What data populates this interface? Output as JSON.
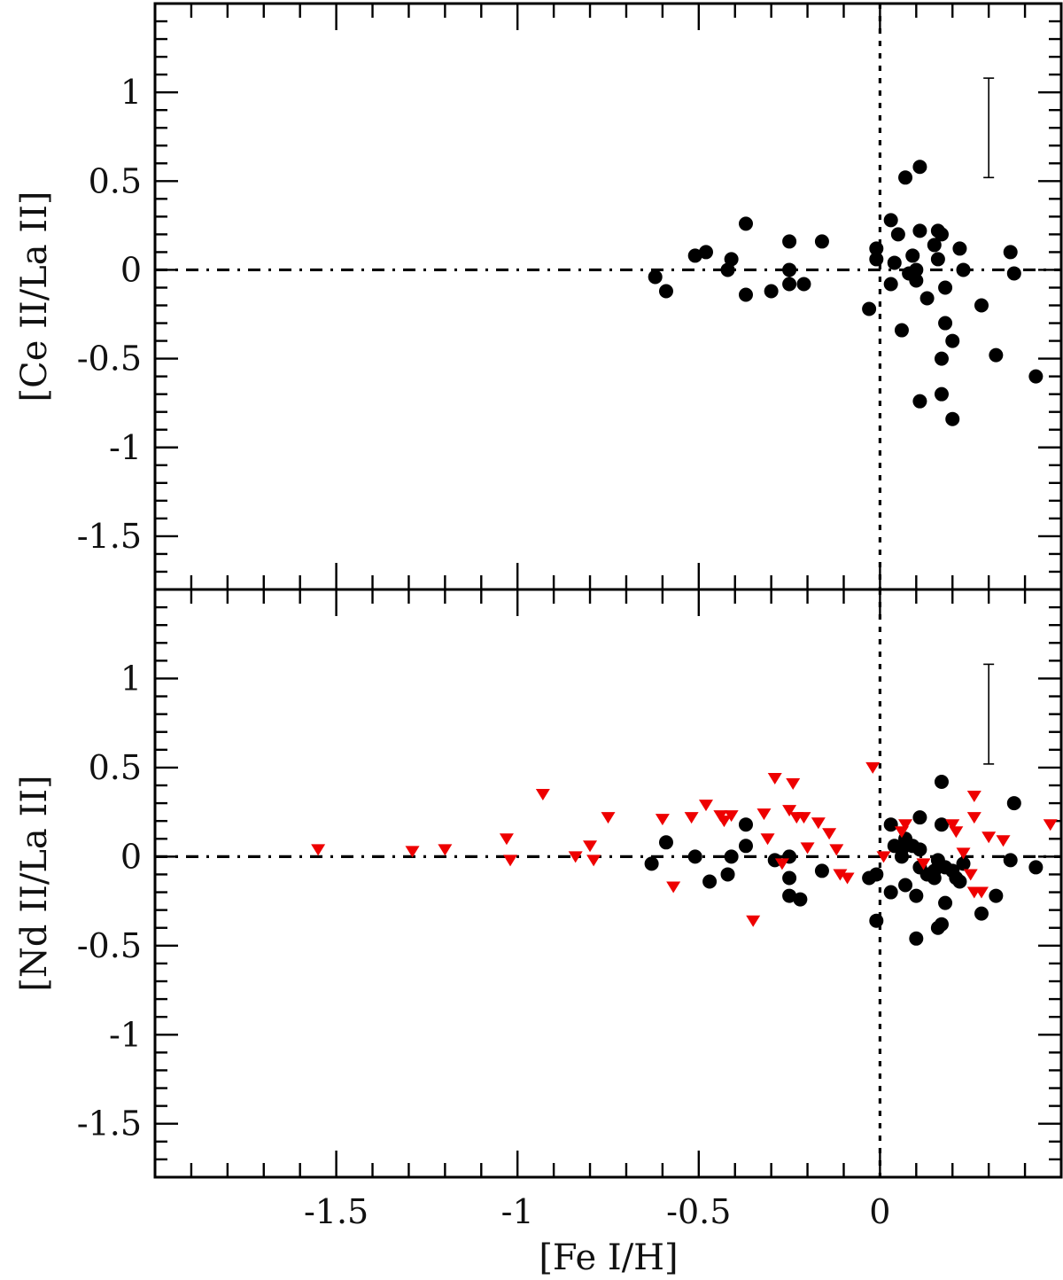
{
  "figure": {
    "xlabel": "[Fe I/H]",
    "x_tick_labels": [
      "-1.5",
      "-1",
      "-0.5",
      "0"
    ],
    "colors": {
      "ink": "#000000",
      "circle": "#000000",
      "triangle": "#ee0000"
    }
  },
  "chart_data": [
    {
      "type": "scatter",
      "ylabel": "[Ce II/La II]",
      "xlim": [
        -2.0,
        0.5
      ],
      "ylim": [
        -1.8,
        1.5
      ],
      "y_tick_labels": [
        "1",
        "0.5",
        "0",
        "-0.5",
        "-1",
        "-1.5"
      ],
      "reference_lines": {
        "horizontal_y": 0,
        "vertical_x": 0
      },
      "error_bar": {
        "x": 0.3,
        "y_low": 0.52,
        "y_high": 1.08
      },
      "grid": false,
      "series": [
        {
          "marker": "circle",
          "color": "#000000",
          "points": [
            [
              -0.62,
              -0.04
            ],
            [
              -0.59,
              -0.12
            ],
            [
              -0.51,
              0.08
            ],
            [
              -0.48,
              0.1
            ],
            [
              -0.42,
              0.0
            ],
            [
              -0.41,
              0.06
            ],
            [
              -0.37,
              0.26
            ],
            [
              -0.37,
              -0.14
            ],
            [
              -0.3,
              -0.12
            ],
            [
              -0.25,
              0.16
            ],
            [
              -0.25,
              0.0
            ],
            [
              -0.25,
              -0.08
            ],
            [
              -0.21,
              -0.08
            ],
            [
              -0.16,
              0.16
            ],
            [
              -0.03,
              -0.22
            ],
            [
              -0.01,
              0.12
            ],
            [
              -0.01,
              0.06
            ],
            [
              0.03,
              0.28
            ],
            [
              0.04,
              0.04
            ],
            [
              0.05,
              0.2
            ],
            [
              0.03,
              -0.08
            ],
            [
              0.06,
              -0.34
            ],
            [
              0.07,
              0.52
            ],
            [
              0.08,
              -0.02
            ],
            [
              0.09,
              0.08
            ],
            [
              0.1,
              0.0
            ],
            [
              0.1,
              -0.06
            ],
            [
              0.11,
              0.58
            ],
            [
              0.11,
              0.22
            ],
            [
              0.11,
              -0.74
            ],
            [
              0.13,
              -0.16
            ],
            [
              0.15,
              0.14
            ],
            [
              0.16,
              0.22
            ],
            [
              0.16,
              0.06
            ],
            [
              0.17,
              0.2
            ],
            [
              0.17,
              -0.5
            ],
            [
              0.17,
              -0.7
            ],
            [
              0.18,
              -0.1
            ],
            [
              0.18,
              -0.3
            ],
            [
              0.2,
              -0.4
            ],
            [
              0.2,
              -0.84
            ],
            [
              0.22,
              0.12
            ],
            [
              0.23,
              0.0
            ],
            [
              0.28,
              -0.2
            ],
            [
              0.32,
              -0.48
            ],
            [
              0.36,
              0.1
            ],
            [
              0.37,
              -0.02
            ],
            [
              0.43,
              -0.6
            ]
          ]
        }
      ]
    },
    {
      "type": "scatter",
      "ylabel": "[Nd II/La II]",
      "xlim": [
        -2.0,
        0.5
      ],
      "ylim": [
        -1.8,
        1.5
      ],
      "y_tick_labels": [
        "1",
        "0.5",
        "0",
        "-0.5",
        "-1",
        "-1.5"
      ],
      "reference_lines": {
        "horizontal_y": 0,
        "vertical_x": 0
      },
      "error_bar": {
        "x": 0.3,
        "y_low": 0.52,
        "y_high": 1.08
      },
      "grid": false,
      "series": [
        {
          "marker": "circle",
          "color": "#000000",
          "points": [
            [
              -0.63,
              -0.04
            ],
            [
              -0.59,
              0.08
            ],
            [
              -0.51,
              0.0
            ],
            [
              -0.47,
              -0.14
            ],
            [
              -0.42,
              -0.1
            ],
            [
              -0.41,
              0.0
            ],
            [
              -0.37,
              0.18
            ],
            [
              -0.37,
              0.06
            ],
            [
              -0.29,
              -0.02
            ],
            [
              -0.25,
              0.0
            ],
            [
              -0.25,
              -0.12
            ],
            [
              -0.25,
              -0.22
            ],
            [
              -0.22,
              -0.24
            ],
            [
              -0.16,
              -0.08
            ],
            [
              -0.03,
              -0.12
            ],
            [
              -0.01,
              -0.1
            ],
            [
              -0.01,
              -0.36
            ],
            [
              0.03,
              0.18
            ],
            [
              0.03,
              -0.2
            ],
            [
              0.04,
              0.06
            ],
            [
              0.06,
              0.0
            ],
            [
              0.06,
              0.04
            ],
            [
              0.07,
              0.1
            ],
            [
              0.07,
              -0.16
            ],
            [
              0.09,
              0.06
            ],
            [
              0.1,
              -0.22
            ],
            [
              0.1,
              -0.46
            ],
            [
              0.11,
              0.22
            ],
            [
              0.11,
              0.04
            ],
            [
              0.11,
              -0.06
            ],
            [
              0.13,
              -0.1
            ],
            [
              0.15,
              -0.08
            ],
            [
              0.15,
              -0.12
            ],
            [
              0.16,
              -0.02
            ],
            [
              0.16,
              -0.4
            ],
            [
              0.17,
              0.18
            ],
            [
              0.17,
              -0.38
            ],
            [
              0.17,
              0.42
            ],
            [
              0.18,
              -0.06
            ],
            [
              0.18,
              -0.26
            ],
            [
              0.2,
              -0.08
            ],
            [
              0.21,
              -0.12
            ],
            [
              0.22,
              -0.14
            ],
            [
              0.23,
              -0.04
            ],
            [
              0.28,
              -0.32
            ],
            [
              0.32,
              -0.22
            ],
            [
              0.36,
              -0.02
            ],
            [
              0.37,
              0.3
            ],
            [
              0.43,
              -0.06
            ]
          ]
        },
        {
          "marker": "triangle-down",
          "color": "#ee0000",
          "points": [
            [
              -1.55,
              0.04
            ],
            [
              -1.29,
              0.03
            ],
            [
              -1.2,
              0.04
            ],
            [
              -1.03,
              0.1
            ],
            [
              -1.02,
              -0.02
            ],
            [
              -0.93,
              0.35
            ],
            [
              -0.84,
              0.0
            ],
            [
              -0.8,
              0.06
            ],
            [
              -0.79,
              -0.02
            ],
            [
              -0.75,
              0.22
            ],
            [
              -0.6,
              0.21
            ],
            [
              -0.57,
              -0.17
            ],
            [
              -0.52,
              0.22
            ],
            [
              -0.48,
              0.29
            ],
            [
              -0.44,
              0.23
            ],
            [
              -0.43,
              0.2
            ],
            [
              -0.41,
              0.23
            ],
            [
              -0.35,
              -0.36
            ],
            [
              -0.32,
              0.24
            ],
            [
              -0.31,
              0.1
            ],
            [
              -0.29,
              0.44
            ],
            [
              -0.27,
              -0.04
            ],
            [
              -0.25,
              0.26
            ],
            [
              -0.24,
              0.41
            ],
            [
              -0.23,
              0.22
            ],
            [
              -0.21,
              0.22
            ],
            [
              -0.2,
              0.05
            ],
            [
              -0.17,
              0.19
            ],
            [
              -0.14,
              0.13
            ],
            [
              -0.12,
              0.04
            ],
            [
              -0.11,
              -0.1
            ],
            [
              -0.09,
              -0.12
            ],
            [
              -0.02,
              0.5
            ],
            [
              0.01,
              0.0
            ],
            [
              0.06,
              0.14
            ],
            [
              0.07,
              0.18
            ],
            [
              0.12,
              -0.04
            ],
            [
              0.2,
              0.18
            ],
            [
              0.21,
              0.14
            ],
            [
              0.23,
              0.02
            ],
            [
              0.25,
              -0.1
            ],
            [
              0.26,
              -0.2
            ],
            [
              0.26,
              0.22
            ],
            [
              0.26,
              0.34
            ],
            [
              0.28,
              -0.2
            ],
            [
              0.3,
              0.11
            ],
            [
              0.34,
              0.09
            ],
            [
              0.47,
              0.18
            ]
          ]
        }
      ]
    }
  ]
}
